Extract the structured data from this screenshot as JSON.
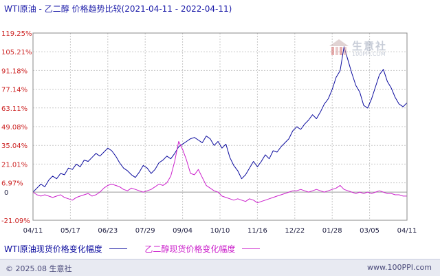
{
  "title": "WTI原油 - 乙二醇 价格趋势比较(2021-04-11 - 2022-04-11)",
  "watermark": {
    "text": "生意社",
    "sub": "100PPI.COM"
  },
  "footer": {
    "copyright": "© 2025.08 生意社",
    "site": "www.100PPI.com"
  },
  "colors": {
    "wti": "#0b0b9e",
    "meg": "#cc22cc",
    "axis_label": "#cc2222",
    "grid": "#c8c8c8"
  },
  "chart_data": {
    "type": "line",
    "title": "WTI原油 - 乙二醇 价格趋势比较(2021-04-11 - 2022-04-11)",
    "xlabel": "",
    "ylabel": "",
    "x_ticks": [
      "04/11",
      "05/17",
      "06/23",
      "07/29",
      "09/04",
      "10/10",
      "11/16",
      "12/22",
      "01/28",
      "03/05",
      "04/11"
    ],
    "y_ticks": [
      "119.25%",
      "105.21%",
      "91.18%",
      "77.14%",
      "63.11%",
      "49.08%",
      "35.04%",
      "21.01%",
      "6.97%",
      "0",
      "-21.09%"
    ],
    "ylim": [
      -21.09,
      119.25
    ],
    "grid": true,
    "legend_position": "bottom-left",
    "series": [
      {
        "name": "WTI原油现货价格变化幅度",
        "values": [
          0,
          3,
          6,
          4,
          9,
          12,
          10,
          14,
          13,
          18,
          17,
          21,
          19,
          24,
          23,
          26,
          29,
          27,
          30,
          33,
          31,
          27,
          22,
          18,
          16,
          13,
          11,
          15,
          20,
          18,
          14,
          17,
          22,
          24,
          27,
          25,
          29,
          34,
          36,
          38,
          40,
          41,
          39,
          37,
          42,
          40,
          35,
          38,
          33,
          36,
          26,
          20,
          16,
          10,
          13,
          18,
          23,
          19,
          23,
          28,
          25,
          31,
          30,
          34,
          37,
          40,
          46,
          49,
          47,
          51,
          54,
          58,
          55,
          60,
          66,
          70,
          77,
          86,
          91,
          109,
          99,
          89,
          80,
          75,
          65,
          63,
          70,
          79,
          88,
          92,
          83,
          78,
          71,
          66,
          64,
          67
        ]
      },
      {
        "name": "乙二醇现货价格变化幅度",
        "values": [
          0,
          -2,
          -3,
          -2,
          -3,
          -4,
          -3,
          -2,
          -4,
          -5,
          -6,
          -4,
          -3,
          -2,
          -1,
          -3,
          -2,
          0,
          3,
          5,
          6,
          5,
          4,
          2,
          1,
          3,
          2,
          1,
          0,
          1,
          2,
          4,
          6,
          5,
          7,
          12,
          23,
          38,
          32,
          24,
          14,
          13,
          17,
          11,
          5,
          3,
          1,
          0,
          -3,
          -4,
          -5,
          -6,
          -5,
          -6,
          -7,
          -5,
          -6,
          -8,
          -7,
          -6,
          -5,
          -4,
          -3,
          -2,
          -1,
          0,
          1,
          1,
          2,
          1,
          0,
          1,
          2,
          1,
          0,
          1,
          2,
          3,
          5,
          2,
          1,
          0,
          -1,
          0,
          -1,
          0,
          -1,
          0,
          1,
          0,
          -1,
          -1,
          -2,
          -2,
          -3,
          -3
        ]
      }
    ]
  }
}
